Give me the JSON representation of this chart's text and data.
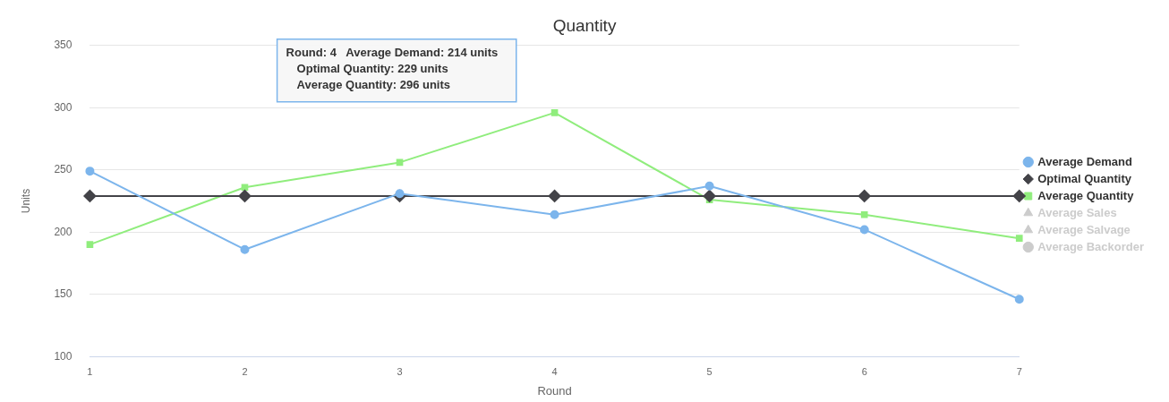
{
  "chart_data": {
    "type": "line",
    "title": "Quantity",
    "xlabel": "Round",
    "ylabel": "Units",
    "categories": [
      "1",
      "2",
      "3",
      "4",
      "5",
      "6",
      "7"
    ],
    "series": [
      {
        "name": "Average Demand",
        "color": "#7cb5ec",
        "marker": "circle",
        "values": [
          249,
          186,
          231,
          214,
          237,
          202,
          146
        ]
      },
      {
        "name": "Optimal Quantity",
        "color": "#434348",
        "marker": "diamond",
        "values": [
          229,
          229,
          229,
          229,
          229,
          229,
          229
        ]
      },
      {
        "name": "Average Quantity",
        "color": "#90ed7d",
        "marker": "square",
        "values": [
          190,
          236,
          256,
          296,
          226,
          214,
          195
        ]
      },
      {
        "name": "Average Sales",
        "color": "#cccccc",
        "marker": "triangle",
        "values": [
          null,
          null,
          null,
          null,
          null,
          null,
          null
        ]
      },
      {
        "name": "Average Salvage",
        "color": "#cccccc",
        "marker": "triangle",
        "values": [
          null,
          null,
          null,
          null,
          null,
          null,
          null
        ]
      },
      {
        "name": "Average Backorder",
        "color": "#cccccc",
        "marker": "circle",
        "values": [
          null,
          null,
          null,
          null,
          null,
          null,
          null
        ]
      }
    ],
    "annotations": [
      "Round: 4",
      "Average Demand: 214 units",
      "Optimal Quantity: 229 units",
      "Average Quantity: 296 units"
    ],
    "ylim": [
      100,
      350
    ],
    "yticks": [
      100,
      150,
      200,
      250,
      300,
      350
    ],
    "grid": "y",
    "legend": "right"
  }
}
